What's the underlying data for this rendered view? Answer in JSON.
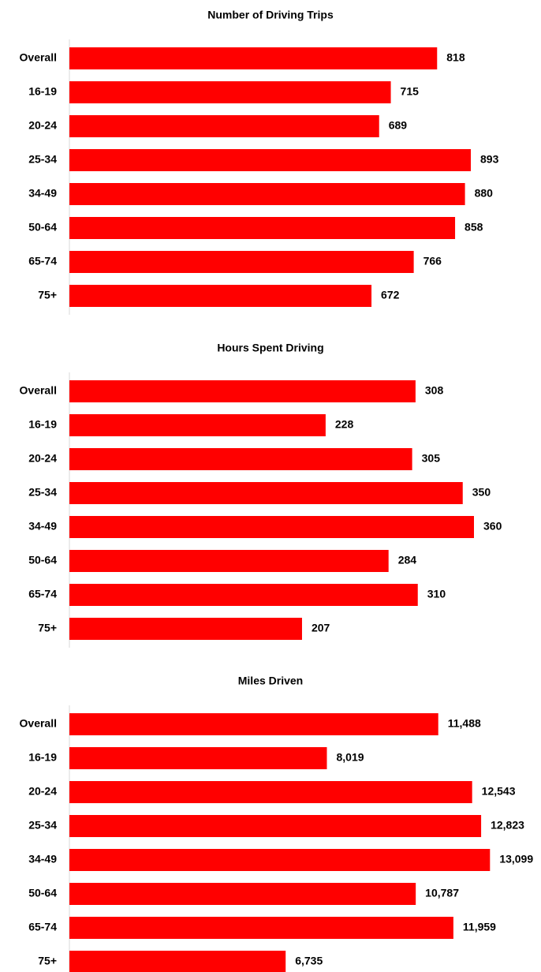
{
  "chart_data": [
    {
      "type": "bar",
      "orientation": "horizontal",
      "title": "Number of Driving Trips",
      "categories": [
        "Overall",
        "16-19",
        "20-24",
        "25-34",
        "34-49",
        "50-64",
        "65-74",
        "75+"
      ],
      "values": [
        818,
        715,
        689,
        893,
        880,
        858,
        766,
        672
      ],
      "color": "#ff0000",
      "xlim": [
        0,
        1000
      ]
    },
    {
      "type": "bar",
      "orientation": "horizontal",
      "title": "Hours Spent Driving",
      "categories": [
        "Overall",
        "16-19",
        "20-24",
        "25-34",
        "34-49",
        "50-64",
        "65-74",
        "75+"
      ],
      "values": [
        308,
        228,
        305,
        350,
        360,
        284,
        310,
        207
      ],
      "color": "#ff0000",
      "xlim": [
        0,
        400
      ]
    },
    {
      "type": "bar",
      "orientation": "horizontal",
      "title": "Miles Driven",
      "categories": [
        "Overall",
        "16-19",
        "20-24",
        "25-34",
        "34-49",
        "50-64",
        "65-74",
        "75+"
      ],
      "values": [
        11488,
        8019,
        12543,
        12823,
        13099,
        10787,
        11959,
        6735
      ],
      "value_labels": [
        "11,488",
        "8,019",
        "12,543",
        "12,823",
        "13,099",
        "10,787",
        "11,959",
        "6,735"
      ],
      "color": "#ff0000",
      "xlim": [
        0,
        14000
      ]
    }
  ]
}
